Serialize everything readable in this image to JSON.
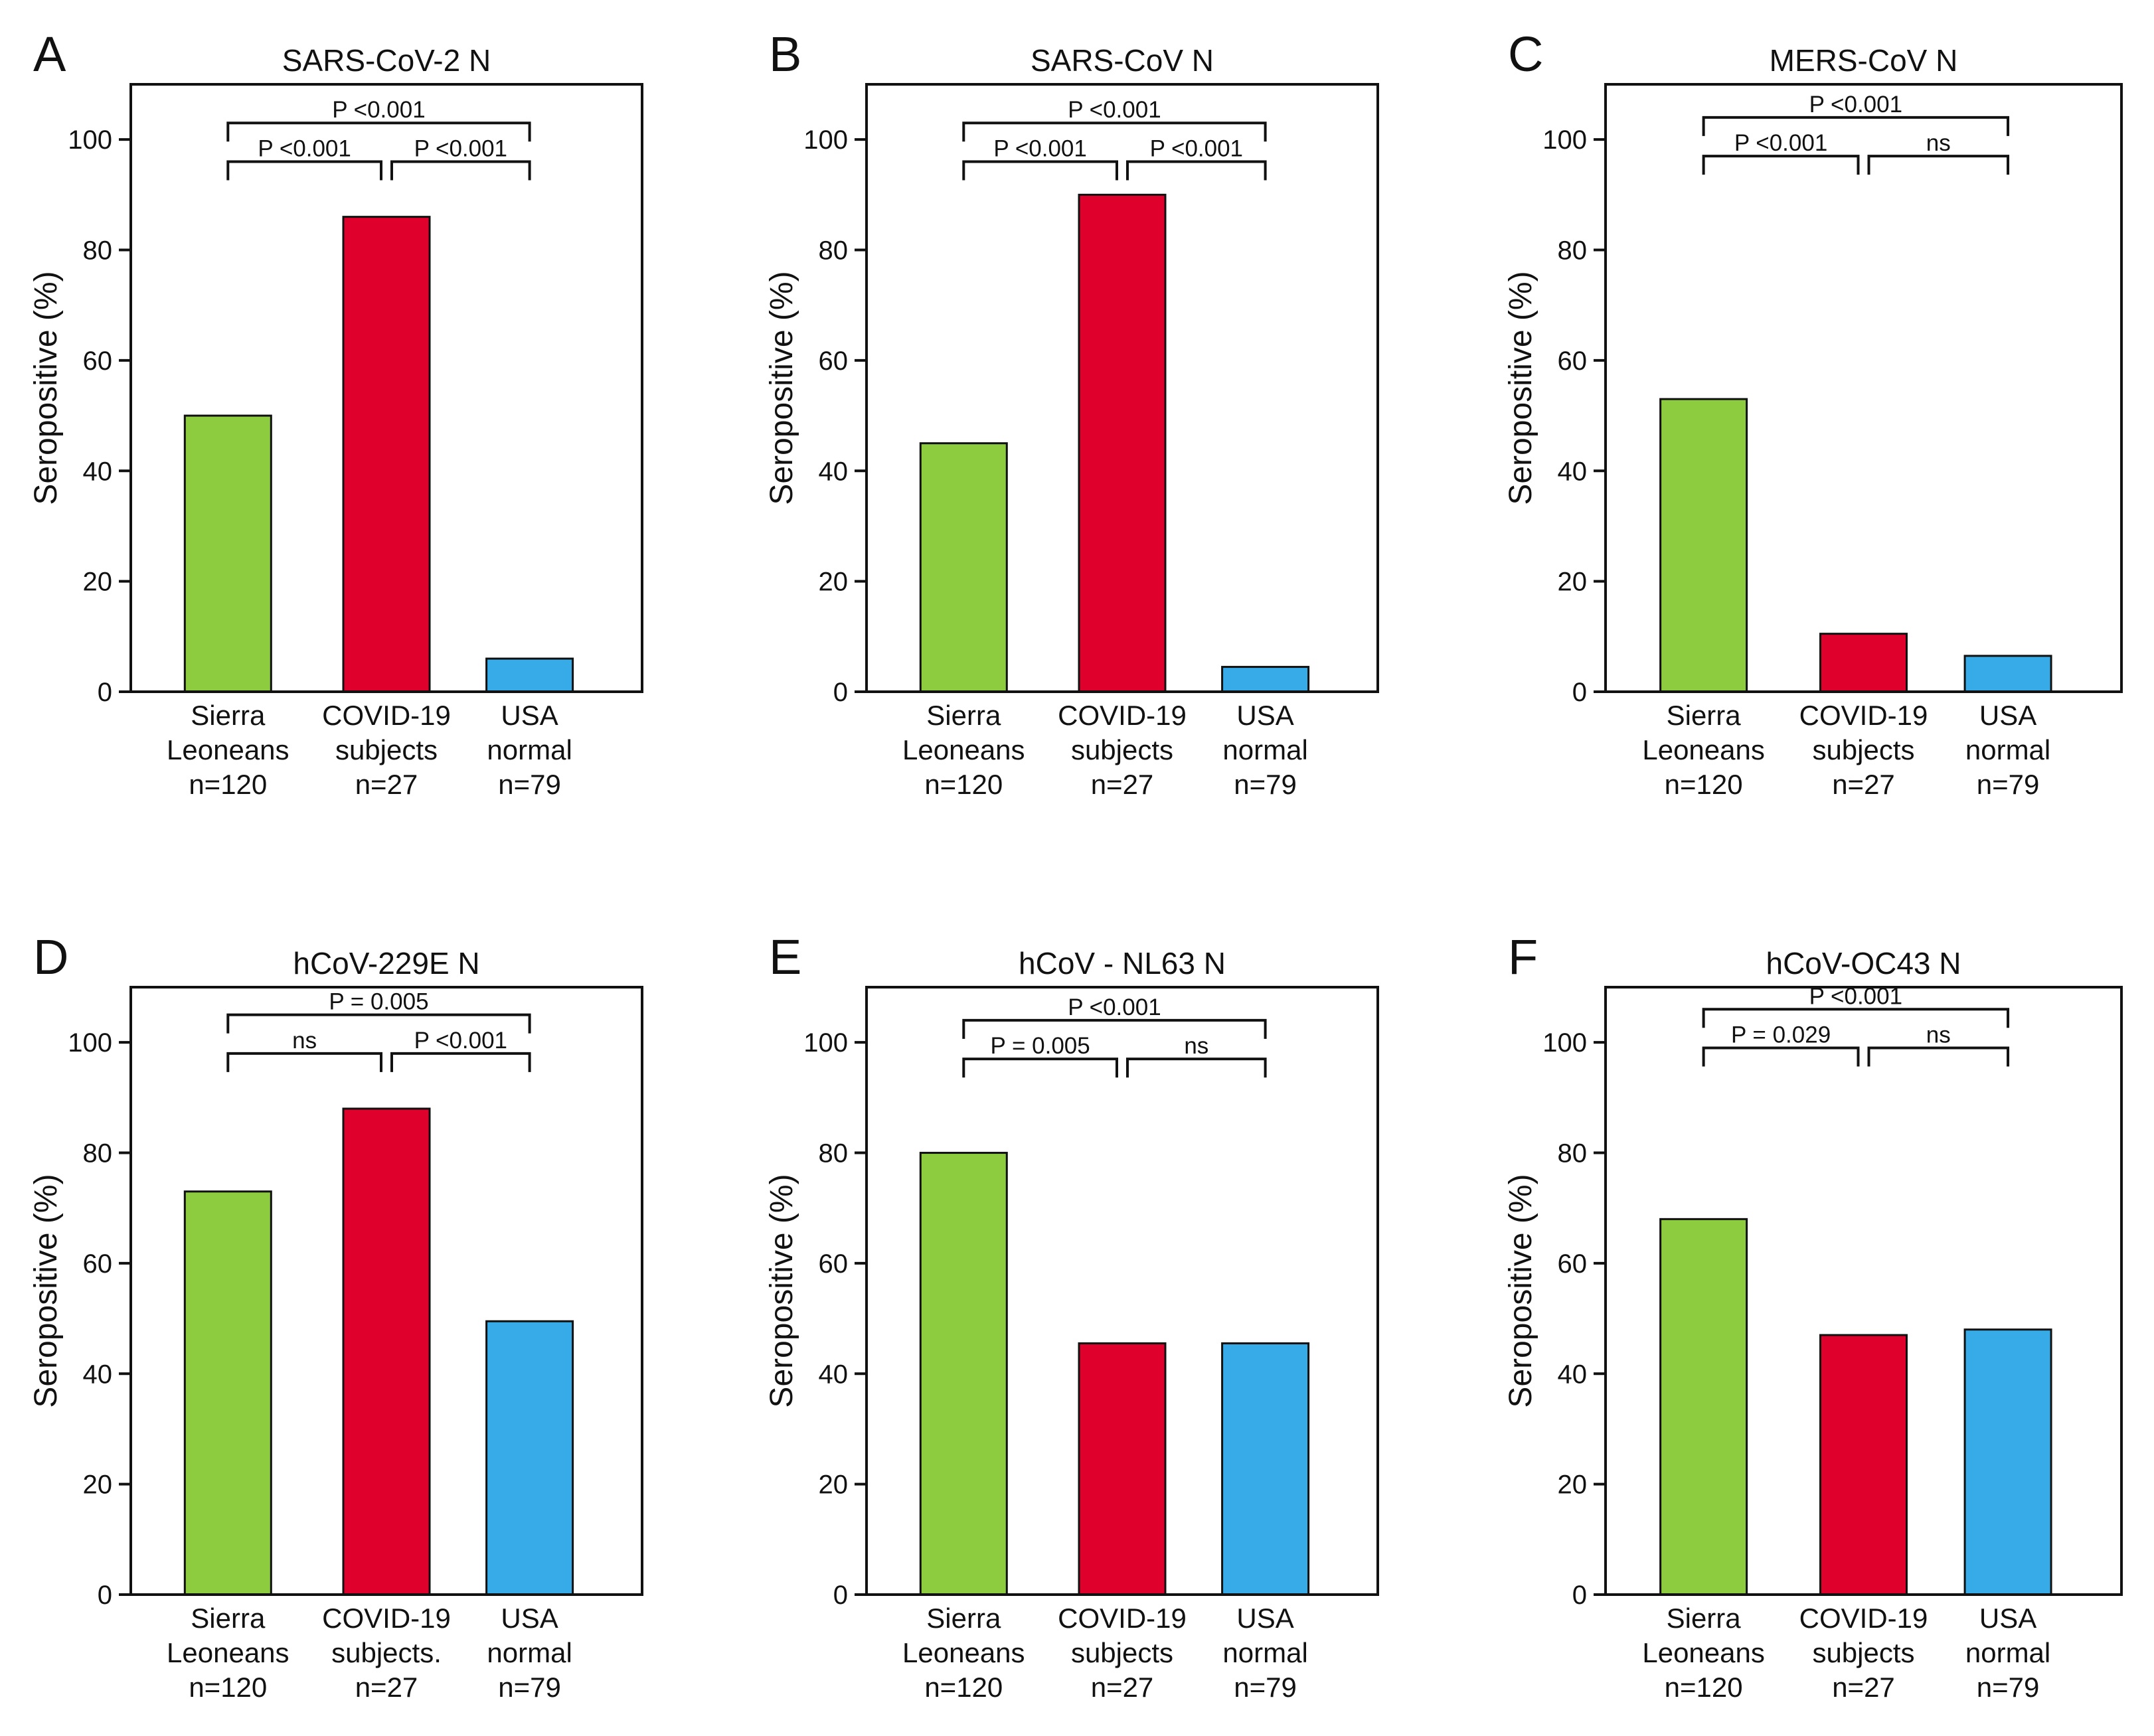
{
  "figure": {
    "palette": {
      "green": "#8dcb3f",
      "red": "#e0002c",
      "blue": "#36abe8",
      "axis": "#111111"
    }
  },
  "chart_data": [
    {
      "panel": "A",
      "type": "bar",
      "title": "SARS-CoV-2 N",
      "ylabel": "Seropositive (%)",
      "xlabel": "",
      "ylim": [
        0,
        110
      ],
      "yticks": [
        0,
        20,
        40,
        60,
        80,
        100
      ],
      "categories": [
        [
          "Sierra",
          "Leoneans",
          "n=120"
        ],
        [
          "COVID-19",
          "subjects",
          "n=27"
        ],
        [
          "USA",
          "normal",
          "n=79"
        ]
      ],
      "values": [
        50,
        86,
        6
      ],
      "bar_colors": [
        "#8dcb3f",
        "#e0002c",
        "#36abe8"
      ],
      "comparisons": [
        {
          "from": 0,
          "to": 2,
          "label": "P <0.001",
          "y": 103
        },
        {
          "from": 0,
          "to": 1,
          "label": "P <0.001",
          "y": 96
        },
        {
          "from": 1,
          "to": 2,
          "label": "P <0.001",
          "y": 96
        }
      ]
    },
    {
      "panel": "B",
      "type": "bar",
      "title": "SARS-CoV N",
      "ylabel": "Seropositive (%)",
      "xlabel": "",
      "ylim": [
        0,
        110
      ],
      "yticks": [
        0,
        20,
        40,
        60,
        80,
        100
      ],
      "categories": [
        [
          "Sierra",
          "Leoneans",
          "n=120"
        ],
        [
          "COVID-19",
          "subjects",
          "n=27"
        ],
        [
          "USA",
          "normal",
          "n=79"
        ]
      ],
      "values": [
        45,
        90,
        4.5
      ],
      "bar_colors": [
        "#8dcb3f",
        "#e0002c",
        "#36abe8"
      ],
      "comparisons": [
        {
          "from": 0,
          "to": 2,
          "label": "P <0.001",
          "y": 103
        },
        {
          "from": 0,
          "to": 1,
          "label": "P <0.001",
          "y": 96
        },
        {
          "from": 1,
          "to": 2,
          "label": "P <0.001",
          "y": 96
        }
      ]
    },
    {
      "panel": "C",
      "type": "bar",
      "title": "MERS-CoV N",
      "ylabel": "Seropositive (%)",
      "xlabel": "",
      "ylim": [
        0,
        110
      ],
      "yticks": [
        0,
        20,
        40,
        60,
        80,
        100
      ],
      "categories": [
        [
          "Sierra",
          "Leoneans",
          "n=120"
        ],
        [
          "COVID-19",
          "subjects",
          "n=27"
        ],
        [
          "USA",
          "normal",
          "n=79"
        ]
      ],
      "values": [
        53,
        10.5,
        6.5
      ],
      "bar_colors": [
        "#8dcb3f",
        "#e0002c",
        "#36abe8"
      ],
      "comparisons": [
        {
          "from": 0,
          "to": 2,
          "label": "P <0.001",
          "y": 104
        },
        {
          "from": 0,
          "to": 1,
          "label": "P <0.001",
          "y": 97
        },
        {
          "from": 1,
          "to": 2,
          "label": "ns",
          "y": 97
        }
      ]
    },
    {
      "panel": "D",
      "type": "bar",
      "title": "hCoV-229E N",
      "ylabel": "Seropositive (%)",
      "xlabel": "",
      "ylim": [
        0,
        110
      ],
      "yticks": [
        0,
        20,
        40,
        60,
        80,
        100
      ],
      "categories": [
        [
          "Sierra",
          "Leoneans",
          "n=120"
        ],
        [
          "COVID-19",
          "subjects.",
          "n=27"
        ],
        [
          "USA",
          "normal",
          "n=79"
        ]
      ],
      "values": [
        73,
        88,
        49.5
      ],
      "bar_colors": [
        "#8dcb3f",
        "#e0002c",
        "#36abe8"
      ],
      "comparisons": [
        {
          "from": 0,
          "to": 2,
          "label": "P = 0.005",
          "y": 105
        },
        {
          "from": 0,
          "to": 1,
          "label": "ns",
          "y": 98
        },
        {
          "from": 1,
          "to": 2,
          "label": "P <0.001",
          "y": 98
        }
      ]
    },
    {
      "panel": "E",
      "type": "bar",
      "title": "hCoV - NL63 N",
      "ylabel": "Seropositive (%)",
      "xlabel": "",
      "ylim": [
        0,
        110
      ],
      "yticks": [
        0,
        20,
        40,
        60,
        80,
        100
      ],
      "categories": [
        [
          "Sierra",
          "Leoneans",
          "n=120"
        ],
        [
          "COVID-19",
          "subjects",
          "n=27"
        ],
        [
          "USA",
          "normal",
          "n=79"
        ]
      ],
      "values": [
        80,
        45.5,
        45.5
      ],
      "bar_colors": [
        "#8dcb3f",
        "#e0002c",
        "#36abe8"
      ],
      "comparisons": [
        {
          "from": 0,
          "to": 2,
          "label": "P <0.001",
          "y": 104
        },
        {
          "from": 0,
          "to": 1,
          "label": "P = 0.005",
          "y": 97
        },
        {
          "from": 1,
          "to": 2,
          "label": "ns",
          "y": 97
        }
      ]
    },
    {
      "panel": "F",
      "type": "bar",
      "title": "hCoV-OC43 N",
      "ylabel": "Seropositive (%)",
      "xlabel": "",
      "ylim": [
        0,
        110
      ],
      "yticks": [
        0,
        20,
        40,
        60,
        80,
        100
      ],
      "categories": [
        [
          "Sierra",
          "Leoneans",
          "n=120"
        ],
        [
          "COVID-19",
          "subjects",
          "n=27"
        ],
        [
          "USA",
          "normal",
          "n=79"
        ]
      ],
      "values": [
        68,
        47,
        48
      ],
      "bar_colors": [
        "#8dcb3f",
        "#e0002c",
        "#36abe8"
      ],
      "comparisons": [
        {
          "from": 0,
          "to": 2,
          "label": "P <0.001",
          "y": 106
        },
        {
          "from": 0,
          "to": 1,
          "label": "P = 0.029",
          "y": 99
        },
        {
          "from": 1,
          "to": 2,
          "label": "ns",
          "y": 99
        }
      ]
    }
  ]
}
